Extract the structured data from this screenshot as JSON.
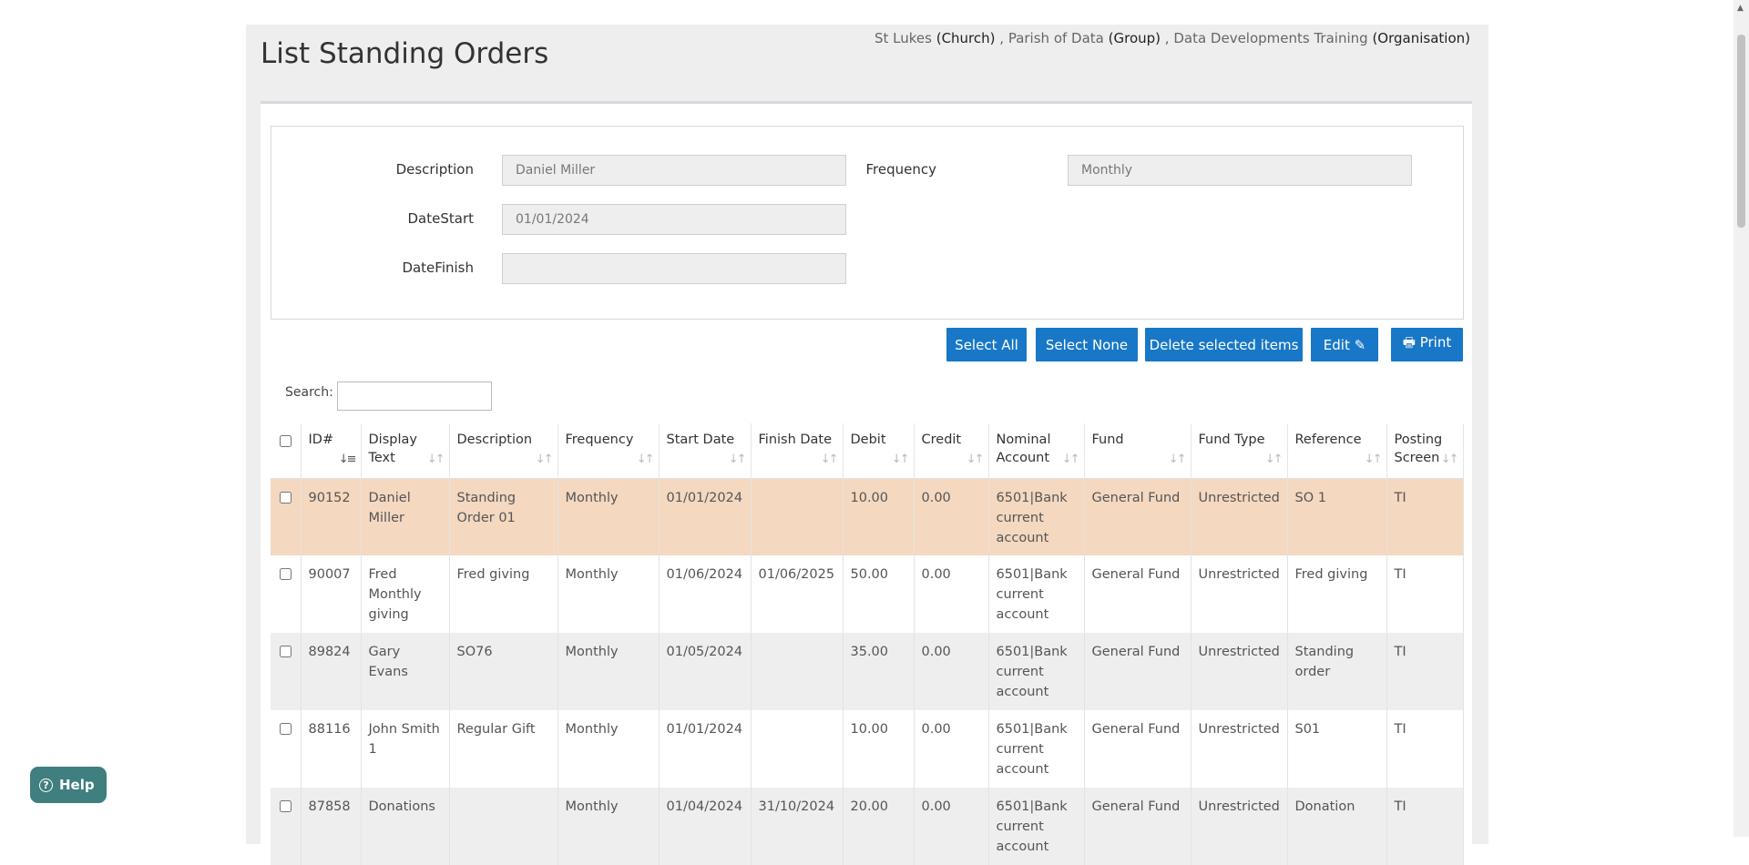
{
  "page": {
    "title": "List Standing Orders"
  },
  "context": {
    "church_name": "St Lukes",
    "church_type": "(Church)",
    "group_name": "Parish of Data",
    "group_type": "(Group)",
    "org_name": "Data Developments Training",
    "org_type": "(Organisation)"
  },
  "form": {
    "description_label": "Description",
    "description_value": "Daniel Miller",
    "frequency_label": "Frequency",
    "frequency_value": "Monthly",
    "datestart_label": "DateStart",
    "datestart_value": "01/01/2024",
    "datefinish_label": "DateFinish",
    "datefinish_value": ""
  },
  "toolbar": {
    "select_all": "Select All",
    "select_none": "Select None",
    "delete_selected": "Delete selected items",
    "edit": "Edit",
    "print": "Print"
  },
  "search": {
    "label": "Search:",
    "value": ""
  },
  "table": {
    "headers": {
      "id": "ID#",
      "display_text": "Display Text",
      "description": "Description",
      "frequency": "Frequency",
      "start_date": "Start Date",
      "finish_date": "Finish Date",
      "debit": "Debit",
      "credit": "Credit",
      "nominal_account": "Nominal Account",
      "fund": "Fund",
      "fund_type": "Fund Type",
      "reference": "Reference",
      "posting_screen": "Posting Screen"
    },
    "rows": [
      {
        "id": "90152",
        "display_text": "Daniel Miller",
        "description": "Standing Order 01",
        "frequency": "Monthly",
        "start_date": "01/01/2024",
        "finish_date": "",
        "debit": "10.00",
        "credit": "0.00",
        "nominal_account": "6501|Bank current account",
        "fund": "General Fund",
        "fund_type": "Unrestricted",
        "reference": "SO 1",
        "posting_screen": "TI"
      },
      {
        "id": "90007",
        "display_text": "Fred Monthly giving",
        "description": "Fred giving",
        "frequency": "Monthly",
        "start_date": "01/06/2024",
        "finish_date": "01/06/2025",
        "debit": "50.00",
        "credit": "0.00",
        "nominal_account": "6501|Bank current account",
        "fund": "General Fund",
        "fund_type": "Unrestricted",
        "reference": "Fred giving",
        "posting_screen": "TI"
      },
      {
        "id": "89824",
        "display_text": "Gary Evans",
        "description": "SO76",
        "frequency": "Monthly",
        "start_date": "01/05/2024",
        "finish_date": "",
        "debit": "35.00",
        "credit": "0.00",
        "nominal_account": "6501|Bank current account",
        "fund": "General Fund",
        "fund_type": "Unrestricted",
        "reference": "Standing order",
        "posting_screen": "TI"
      },
      {
        "id": "88116",
        "display_text": "John Smith 1",
        "description": "Regular Gift",
        "frequency": "Monthly",
        "start_date": "01/01/2024",
        "finish_date": "",
        "debit": "10.00",
        "credit": "0.00",
        "nominal_account": "6501|Bank current account",
        "fund": "General Fund",
        "fund_type": "Unrestricted",
        "reference": "S01",
        "posting_screen": "TI"
      },
      {
        "id": "87858",
        "display_text": "Donations",
        "description": "",
        "frequency": "Monthly",
        "start_date": "01/04/2024",
        "finish_date": "31/10/2024",
        "debit": "20.00",
        "credit": "0.00",
        "nominal_account": "6501|Bank current account",
        "fund": "General Fund",
        "fund_type": "Unrestricted",
        "reference": "Donation",
        "posting_screen": "TI"
      }
    ]
  },
  "help": {
    "label": "Help"
  },
  "icons": {
    "edit": "edit-icon",
    "print": "print-icon",
    "sort": "sort-icon",
    "help": "question-circle-icon"
  },
  "colors": {
    "primary_button": "#1878c7",
    "selected_row": "#f4d8bf",
    "help_button": "#3f7f7f"
  }
}
